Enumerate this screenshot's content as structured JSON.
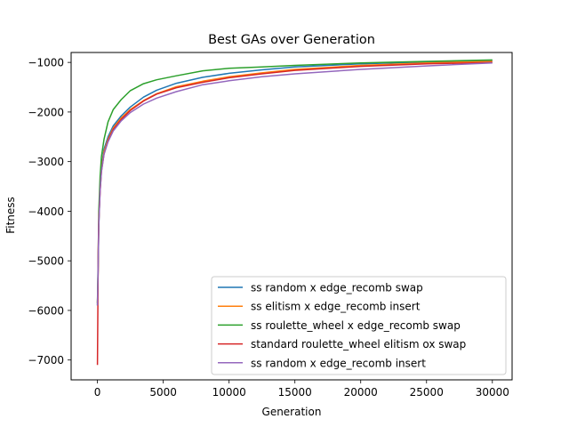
{
  "chart_data": {
    "type": "line",
    "title": "Best GAs over Generation",
    "xlabel": "Generation",
    "ylabel": "Fitness",
    "xlim": [
      -2000,
      31500
    ],
    "ylim": [
      -7400,
      -800
    ],
    "xticks": [
      0,
      5000,
      10000,
      15000,
      20000,
      25000,
      30000
    ],
    "xtick_labels": [
      "0",
      "5000",
      "10000",
      "15000",
      "20000",
      "25000",
      "30000"
    ],
    "yticks": [
      -7000,
      -6000,
      -5000,
      -4000,
      -3000,
      -2000,
      -1000
    ],
    "ytick_labels": [
      "−7000",
      "−6000",
      "−5000",
      "−4000",
      "−3000",
      "−2000",
      "−1000"
    ],
    "grid": false,
    "legend_position": "lower right",
    "series": [
      {
        "name": "ss random x edge_recomb swap",
        "color": "#1f77b4",
        "x": [
          0,
          50,
          100,
          200,
          300,
          500,
          800,
          1200,
          1800,
          2500,
          3500,
          4500,
          6000,
          8000,
          10000,
          12500,
          15000,
          20000,
          25000,
          30000
        ],
        "y": [
          -5900,
          -5200,
          -4300,
          -3500,
          -3100,
          -2750,
          -2500,
          -2280,
          -2080,
          -1900,
          -1700,
          -1560,
          -1420,
          -1300,
          -1220,
          -1150,
          -1090,
          -1030,
          -990,
          -965
        ]
      },
      {
        "name": "ss elitism x edge_recomb insert",
        "color": "#ff7f0e",
        "x": [
          0,
          50,
          100,
          200,
          300,
          500,
          800,
          1200,
          1800,
          2500,
          3500,
          4500,
          6000,
          8000,
          10000,
          12500,
          15000,
          20000,
          25000,
          30000
        ],
        "y": [
          -5850,
          -5200,
          -4250,
          -3550,
          -3150,
          -2800,
          -2550,
          -2320,
          -2120,
          -1950,
          -1770,
          -1630,
          -1490,
          -1380,
          -1290,
          -1210,
          -1140,
          -1060,
          -1010,
          -980
        ]
      },
      {
        "name": "ss roulette_wheel x edge_recomb swap",
        "color": "#2ca02c",
        "x": [
          0,
          50,
          100,
          200,
          300,
          500,
          800,
          1200,
          1800,
          2500,
          3500,
          4500,
          6000,
          8000,
          10000,
          12500,
          15000,
          20000,
          25000,
          30000
        ],
        "y": [
          -5850,
          -5000,
          -4000,
          -3300,
          -2900,
          -2550,
          -2200,
          -1950,
          -1750,
          -1570,
          -1430,
          -1350,
          -1270,
          -1170,
          -1120,
          -1090,
          -1060,
          -1010,
          -980,
          -950
        ]
      },
      {
        "name": "standard roulette_wheel elitism ox swap",
        "color": "#d62728",
        "x": [
          0,
          30,
          60,
          100,
          200,
          300,
          500,
          800,
          1200,
          1800,
          2500,
          3500,
          4500,
          6000,
          8000,
          10000,
          12500,
          15000,
          20000,
          25000,
          30000
        ],
        "y": [
          -7100,
          -5900,
          -4800,
          -4200,
          -3600,
          -3200,
          -2850,
          -2580,
          -2350,
          -2150,
          -1970,
          -1780,
          -1640,
          -1510,
          -1400,
          -1310,
          -1230,
          -1160,
          -1080,
          -1030,
          -1000
        ]
      },
      {
        "name": "ss random x edge_recomb insert",
        "color": "#9467bd",
        "x": [
          0,
          50,
          100,
          200,
          300,
          500,
          800,
          1200,
          1800,
          2500,
          3500,
          4500,
          6000,
          8000,
          10000,
          12500,
          15000,
          20000,
          25000,
          30000
        ],
        "y": [
          -5900,
          -5100,
          -4300,
          -3600,
          -3200,
          -2850,
          -2600,
          -2380,
          -2180,
          -2010,
          -1840,
          -1720,
          -1590,
          -1450,
          -1370,
          -1290,
          -1230,
          -1140,
          -1070,
          -1010
        ]
      }
    ]
  }
}
